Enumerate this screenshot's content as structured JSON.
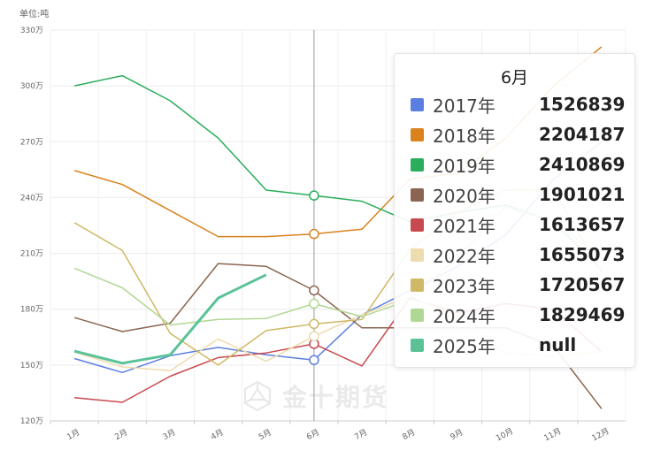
{
  "unit_label": "单位:吨",
  "watermark": "金十期货",
  "tooltip": {
    "title": "6月",
    "rows": [
      {
        "name": "2017年",
        "value": "1526839",
        "color": "#5b7fe0"
      },
      {
        "name": "2018年",
        "value": "2204187",
        "color": "#d9821e"
      },
      {
        "name": "2019年",
        "value": "2410869",
        "color": "#2aae5b"
      },
      {
        "name": "2020年",
        "value": "1901021",
        "color": "#8b6551"
      },
      {
        "name": "2021年",
        "value": "1613657",
        "color": "#c8494f"
      },
      {
        "name": "2022年",
        "value": "1655073",
        "color": "#ecdcae"
      },
      {
        "name": "2023年",
        "value": "1720567",
        "color": "#cfb866"
      },
      {
        "name": "2024年",
        "value": "1829469",
        "color": "#b1d893"
      },
      {
        "name": "2025年",
        "value": "null",
        "color": "#5bc297"
      }
    ]
  },
  "chart_data": {
    "type": "line",
    "categories": [
      "1月",
      "2月",
      "3月",
      "4月",
      "5月",
      "6月",
      "7月",
      "8月",
      "9月",
      "10月",
      "11月",
      "12月"
    ],
    "ylim": [
      1200000,
      3300000
    ],
    "yticks": [
      1200000,
      1500000,
      1800000,
      2100000,
      2400000,
      2700000,
      3000000,
      3300000
    ],
    "ytick_labels": [
      "120万",
      "150万",
      "180万",
      "210万",
      "240万",
      "270万",
      "300万",
      "330万"
    ],
    "highlight_index": 5,
    "series": [
      {
        "name": "2017年",
        "color": "#5b7fe0",
        "values": [
          1535000,
          1460000,
          1550000,
          1595000,
          1555000,
          1526839,
          1770000,
          1900000,
          2030000,
          2200000,
          2500000,
          2700000
        ]
      },
      {
        "name": "2018年",
        "color": "#d9821e",
        "values": [
          2545000,
          2470000,
          2330000,
          2190000,
          2190000,
          2204187,
          2230000,
          2500000,
          2530000,
          2720000,
          3000000,
          3210000
        ]
      },
      {
        "name": "2019年",
        "color": "#2aae5b",
        "values": [
          3000000,
          3055000,
          2920000,
          2720000,
          2440000,
          2410869,
          2380000,
          2270000,
          2320000,
          2360000,
          2270000,
          2010000
        ]
      },
      {
        "name": "2020年",
        "color": "#8b6551",
        "values": [
          1755000,
          1680000,
          1725000,
          2045000,
          2030000,
          1901021,
          1700000,
          1700000,
          1700000,
          1700000,
          1600000,
          1265000
        ]
      },
      {
        "name": "2021年",
        "color": "#c8494f",
        "values": [
          1325000,
          1300000,
          1440000,
          1540000,
          1565000,
          1613657,
          1495000,
          1860000,
          1780000,
          1830000,
          1800000,
          1570000
        ]
      },
      {
        "name": "2022年",
        "color": "#ecdcae",
        "values": [
          1570000,
          1490000,
          1470000,
          1640000,
          1520000,
          1655073,
          1770000,
          1870000,
          1760000,
          1560000,
          1550000,
          1570000
        ]
      },
      {
        "name": "2023年",
        "color": "#cfb866",
        "values": [
          2265000,
          2115000,
          1670000,
          1500000,
          1685000,
          1720567,
          1745000,
          2120000,
          2320000,
          2440000,
          2440000,
          2000000
        ]
      },
      {
        "name": "2024年",
        "color": "#b1d893",
        "values": [
          2020000,
          1915000,
          1715000,
          1745000,
          1750000,
          1829469,
          1760000,
          1850000,
          2080000,
          2350000,
          2270000,
          2080000
        ]
      },
      {
        "name": "2025年",
        "color": "#5bc297",
        "values": [
          1575000,
          1510000,
          1555000,
          1860000,
          1985000,
          null,
          null,
          null,
          null,
          null,
          null,
          null
        ]
      }
    ]
  }
}
